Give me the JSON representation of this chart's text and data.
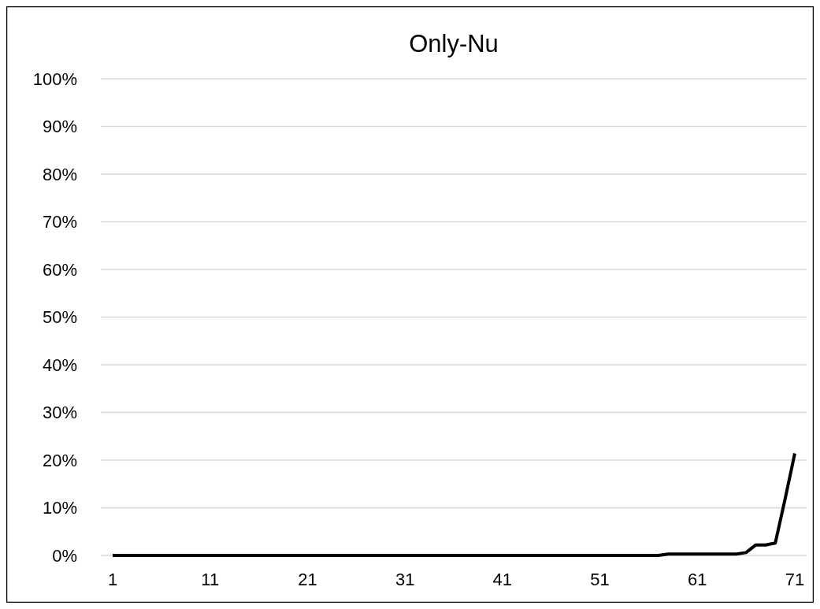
{
  "chart_data": {
    "type": "line",
    "title": "Only-Nu",
    "categories": [
      "1",
      null,
      null,
      null,
      null,
      null,
      null,
      null,
      null,
      null,
      "11",
      null,
      null,
      null,
      null,
      null,
      null,
      null,
      null,
      null,
      "21",
      null,
      null,
      null,
      null,
      null,
      null,
      null,
      null,
      null,
      "31",
      null,
      null,
      null,
      null,
      null,
      null,
      null,
      null,
      null,
      "41",
      null,
      null,
      null,
      null,
      null,
      null,
      null,
      null,
      null,
      "51",
      null,
      null,
      null,
      null,
      null,
      null,
      null,
      null,
      null,
      "61",
      null,
      null,
      null,
      null,
      null,
      null,
      null,
      null,
      null,
      "71"
    ],
    "series": [
      {
        "color": "#000000",
        "values": [
          0,
          0,
          0,
          0,
          0,
          0,
          0,
          0,
          0,
          0,
          0,
          0,
          0,
          0,
          0,
          0,
          0,
          0,
          0,
          0,
          0,
          0,
          0,
          0,
          0,
          0,
          0,
          0,
          0,
          0,
          0,
          0,
          0,
          0,
          0,
          0,
          0,
          0,
          0,
          0,
          0,
          0,
          0,
          0,
          0,
          0,
          0,
          0,
          0,
          0,
          0,
          0,
          0,
          0,
          0,
          0,
          0,
          0.3,
          0.3,
          0.3,
          0.3,
          0.3,
          0.3,
          0.3,
          0.3,
          0.6,
          2.2,
          2.2,
          2.6,
          11.8,
          21.4
        ]
      }
    ],
    "ylim": [
      0,
      100
    ],
    "yticks": [
      {
        "value": 0,
        "label": "0%"
      },
      {
        "value": 10,
        "label": "10%"
      },
      {
        "value": 20,
        "label": "20%"
      },
      {
        "value": 30,
        "label": "30%"
      },
      {
        "value": 40,
        "label": "40%"
      },
      {
        "value": 50,
        "label": "50%"
      },
      {
        "value": 60,
        "label": "60%"
      },
      {
        "value": 70,
        "label": "70%"
      },
      {
        "value": 80,
        "label": "80%"
      },
      {
        "value": 90,
        "label": "90%"
      },
      {
        "value": 100,
        "label": "100%"
      }
    ],
    "grid": "y",
    "marker": "none",
    "line_style": "solid"
  }
}
